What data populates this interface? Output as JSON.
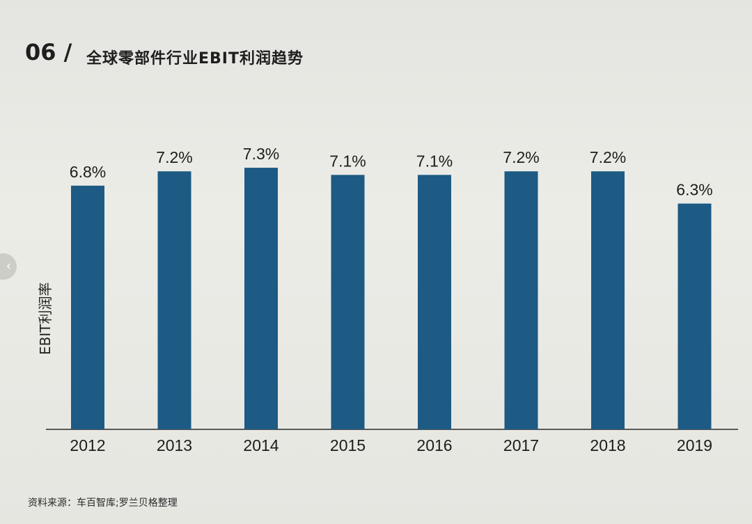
{
  "figure": {
    "number": "06 /",
    "title": "全球零部件行业EBIT利润趋势",
    "source": "资料来源：车百智库;罗兰贝格整理"
  },
  "side_tab": {
    "icon": "chevron-left-icon"
  },
  "colors": {
    "bar": "#1d5a84",
    "axis": "#2a2a2a",
    "background": "#e9e9e4"
  },
  "chart_data": {
    "type": "bar",
    "categories": [
      "2012",
      "2013",
      "2014",
      "2015",
      "2016",
      "2017",
      "2018",
      "2019"
    ],
    "values": [
      6.8,
      7.2,
      7.3,
      7.1,
      7.1,
      7.2,
      7.2,
      6.3
    ],
    "value_labels": [
      "6.8%",
      "7.2%",
      "7.3%",
      "7.1%",
      "7.1%",
      "7.2%",
      "7.2%",
      "6.3%"
    ],
    "ylabel": "EBIT利润率",
    "xlabel": "",
    "ylim": [
      0,
      8
    ],
    "grid": false,
    "legend": "none"
  }
}
